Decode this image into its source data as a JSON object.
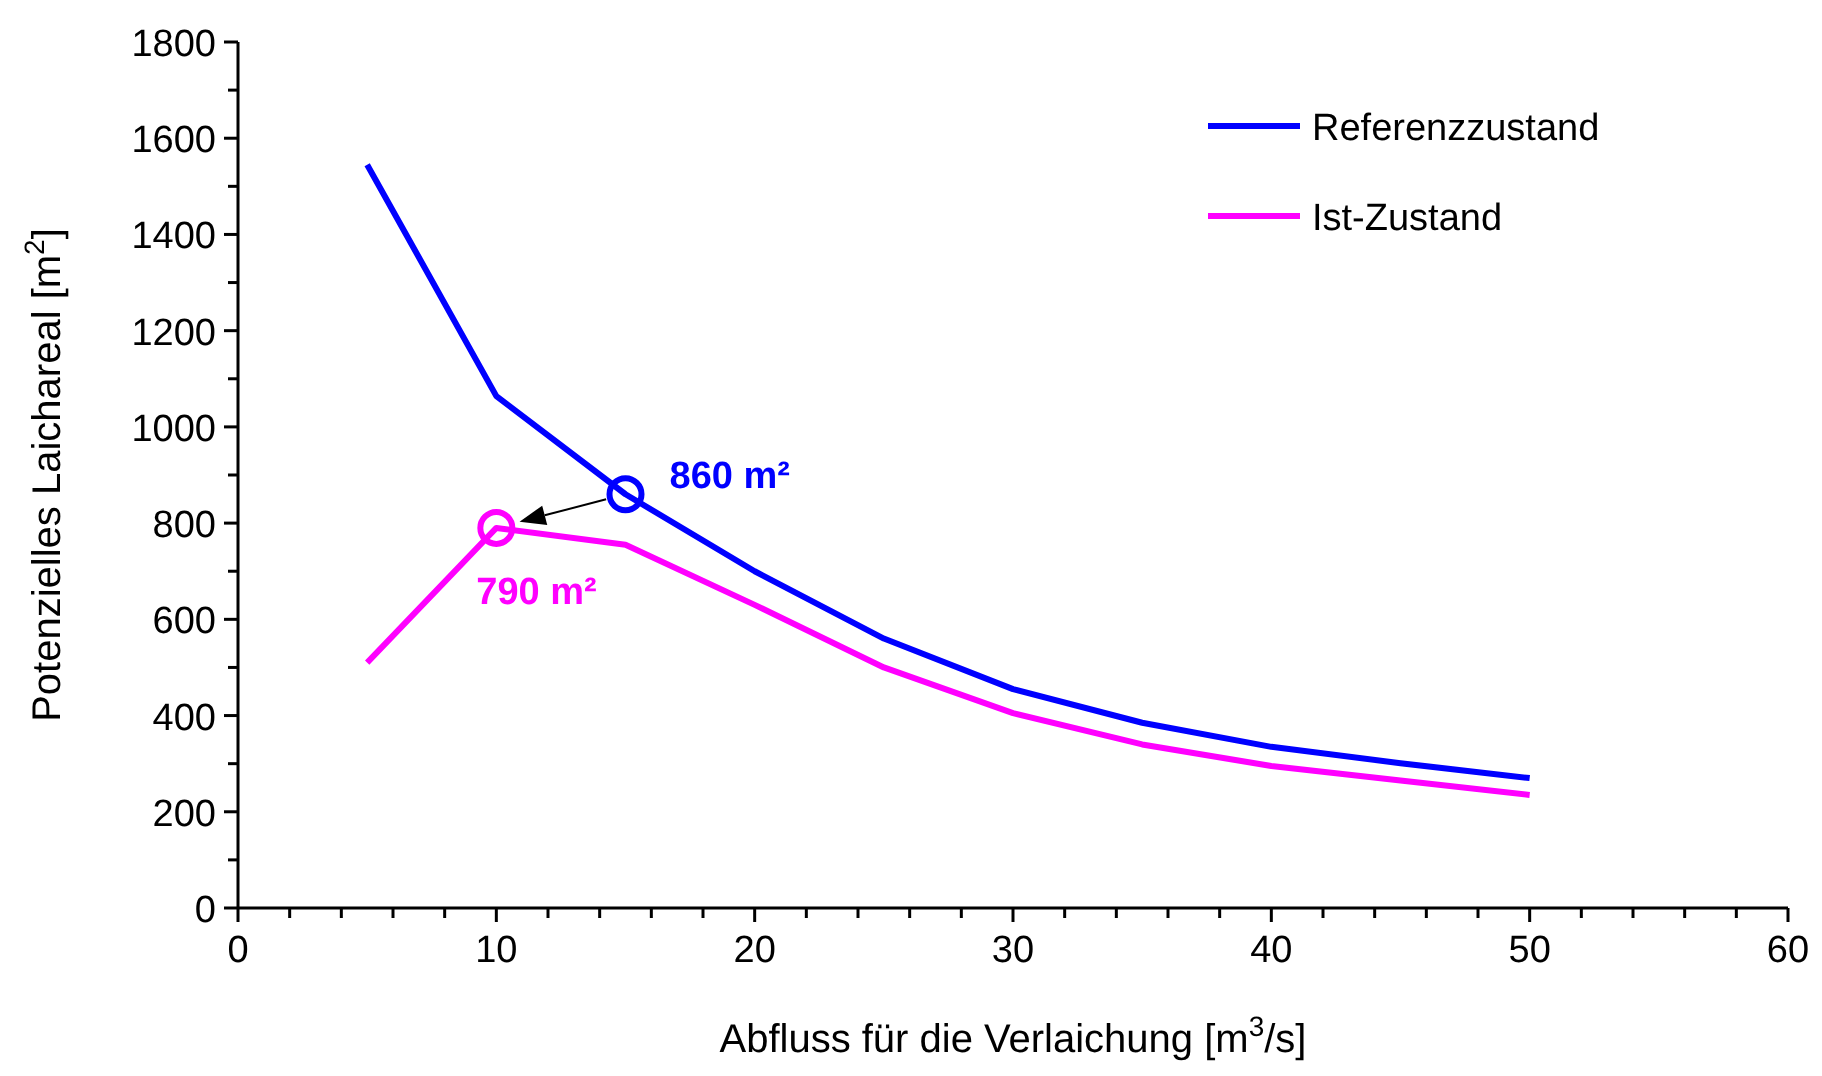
{
  "chart_data": {
    "type": "line",
    "xlabel": "Abfluss für die Verlaichung [m$^{3}$/s]",
    "ylabel": "Potenzielles Laichareal [m$^{2}$]",
    "x": [
      5,
      10,
      15,
      20,
      25,
      30,
      35,
      40,
      45,
      50
    ],
    "series": [
      {
        "name": "Referenzzustand",
        "color": "#0000ff",
        "values": [
          1545,
          1064,
          860,
          700,
          560,
          455,
          385,
          335,
          301,
          270
        ]
      },
      {
        "name": "Ist-Zustand",
        "color": "#ff00ff",
        "values": [
          510,
          790,
          755,
          630,
          500,
          405,
          340,
          295,
          265,
          235
        ]
      }
    ],
    "xlim": [
      0,
      60
    ],
    "ylim": [
      0,
      1800
    ],
    "xticks": [
      0,
      {
        "value": 2,
        "label": null
      },
      {
        "value": 4,
        "label": null
      },
      {
        "value": 6,
        "label": null
      },
      {
        "value": 8,
        "label": null
      },
      10,
      {
        "value": 12,
        "label": null
      },
      {
        "value": 14,
        "label": null
      },
      {
        "value": 16,
        "label": null
      },
      {
        "value": 18,
        "label": null
      },
      20,
      {
        "value": 22,
        "label": null
      },
      {
        "value": 24,
        "label": null
      },
      {
        "value": 26,
        "label": null
      },
      {
        "value": 28,
        "label": null
      },
      30,
      {
        "value": 32,
        "label": null
      },
      {
        "value": 34,
        "label": null
      },
      {
        "value": 36,
        "label": null
      },
      {
        "value": 38,
        "label": null
      },
      40,
      {
        "value": 42,
        "label": null
      },
      {
        "value": 44,
        "label": null
      },
      {
        "value": 46,
        "label": null
      },
      {
        "value": 48,
        "label": null
      },
      50,
      {
        "value": 52,
        "label": null
      },
      {
        "value": 54,
        "label": null
      },
      {
        "value": 56,
        "label": null
      },
      {
        "value": 58,
        "label": null
      },
      60
    ],
    "yticks": [
      0,
      {
        "value": 100,
        "label": null
      },
      200,
      {
        "value": 300,
        "label": null
      },
      400,
      {
        "value": 500,
        "label": null
      },
      600,
      {
        "value": 700,
        "label": null
      },
      800,
      {
        "value": 900,
        "label": null
      },
      1000,
      {
        "value": 1100,
        "label": null
      },
      1200,
      {
        "value": 1300,
        "label": null
      },
      1400,
      {
        "value": 1500,
        "label": null
      },
      1600,
      {
        "value": 1700,
        "label": null
      },
      1800
    ],
    "annotations": [
      {
        "text": "860 m²",
        "x": 15,
        "y": 860
      },
      {
        "text": "790 m²",
        "x": 10,
        "y": 790
      }
    ],
    "legend": "top right",
    "marker": "none",
    "line_style": "solid",
    "grid": false
  }
}
